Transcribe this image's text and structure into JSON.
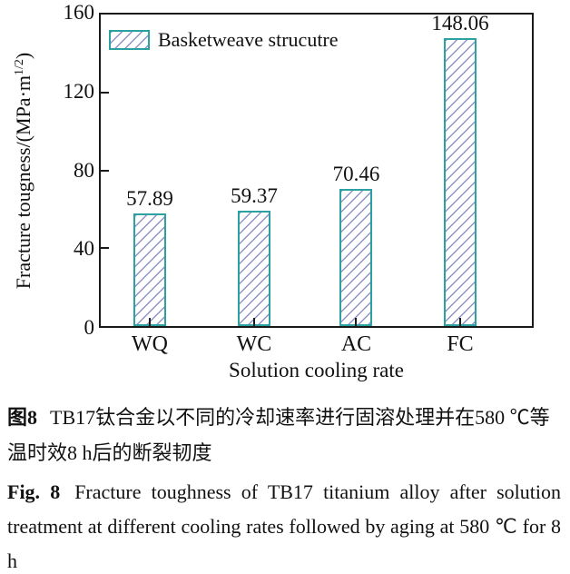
{
  "chart_data": {
    "type": "bar",
    "categories": [
      "WQ",
      "WC",
      "AC",
      "FC"
    ],
    "values": [
      57.89,
      59.37,
      70.46,
      148.06
    ],
    "value_labels": [
      "57.89",
      "59.37",
      "70.46",
      "148.06"
    ],
    "legend": {
      "label": "Basketweave strucutre",
      "position": "top-left"
    },
    "xlabel": "Solution cooling rate",
    "ylabel": {
      "prefix": "Fracture tougness/(MPa·m",
      "superscript": "1/2",
      "suffix": ")"
    },
    "ylim": [
      0,
      160
    ],
    "yticks": [
      0,
      40,
      80,
      120,
      160
    ],
    "ytick_labels": [
      "0",
      "40",
      "80",
      "120",
      "160"
    ],
    "grid": false,
    "colors": {
      "bar_border": "#2BA1A1",
      "bar_hatch": "#8F93C7",
      "axis": "#1A1A1A",
      "text": "#111111"
    }
  },
  "captions": {
    "chinese": {
      "fig_label": "图8",
      "text": "TB17钛合金以不同的冷却速率进行固溶处理并在580 ℃等温时效8 h后的断裂韧度"
    },
    "english": {
      "fig_label": "Fig. 8",
      "text": "Fracture toughness of TB17 titanium alloy after solution treatment at different cooling rates followed by aging at 580 ℃ for 8 h"
    }
  }
}
